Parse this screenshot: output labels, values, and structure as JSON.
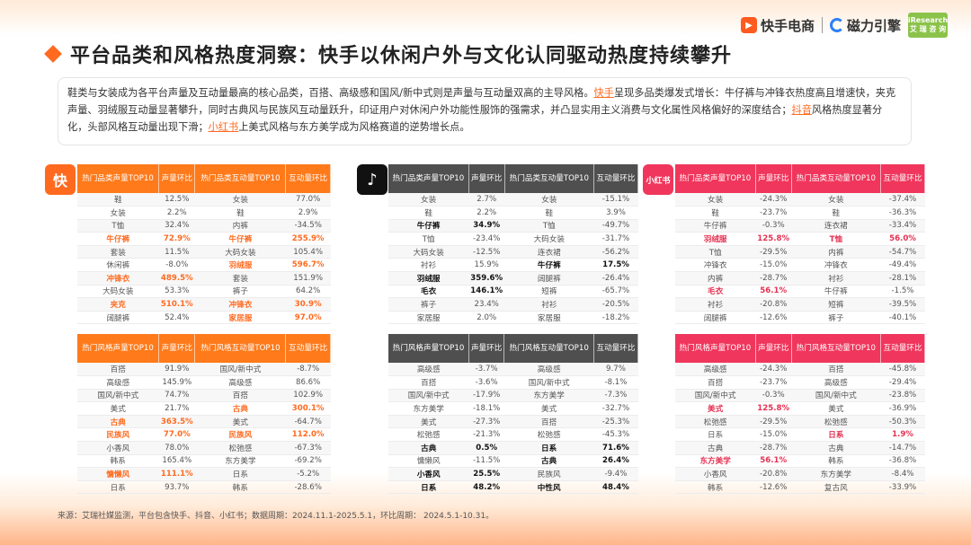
{
  "title": "平台品类和风格热度洞察：快手以休闲户外与文化认同驱动热度持续攀升",
  "logos": {
    "ks": "快手电商",
    "cl": "磁力引擎",
    "ir_top": "iResearch",
    "ir_bottom": "艾 瑞 咨 询"
  },
  "summary": {
    "p1": "鞋类与女装成为各平台声量及互动量最高的核心品类，百搭、高级感和国风/新中式则是声量与互动量双高的主导风格。",
    "ks": "快手",
    "p2": "呈现多品类爆发式增长：牛仔裤与冲锋衣热度高且增速快，夹克声量、羽绒服互动量显著攀升，同时古典风与民族风互动量跃升，印证用户对休闲户外功能性服饰的强需求，并凸显实用主义消费与文化属性风格偏好的深度结合；",
    "dy": "抖音",
    "p3": "风格热度显著分化，头部风格互动量出现下滑；",
    "xhs": "小红书",
    "p4": "上美式风格与东方美学成为风格赛道的逆势增长点。"
  },
  "icons": {
    "ks": "快",
    "dy": "♪",
    "xhs": "小红书"
  },
  "headers": {
    "cat_voice": "热门品类声量TOP10",
    "cat_inter": "热门品类互动量TOP10",
    "style_voice": "热门风格声量TOP10",
    "style_inter": "热门风格互动量TOP10",
    "voice_change": "声量环比",
    "inter_change": "互动量环比"
  },
  "ks_cat": [
    [
      "鞋",
      "12.5%",
      "女装",
      "77.0%",
      "",
      ""
    ],
    [
      "女装",
      "2.2%",
      "鞋",
      "2.9%",
      "",
      ""
    ],
    [
      "T恤",
      "32.4%",
      "内裤",
      "-34.5%",
      "",
      ""
    ],
    [
      "牛仔裤",
      "72.9%",
      "牛仔裤",
      "255.9%",
      "h",
      "h"
    ],
    [
      "套装",
      "11.5%",
      "大码女装",
      "105.4%",
      "",
      ""
    ],
    [
      "休闲裤",
      "-8.0%",
      "羽绒服",
      "596.7%",
      "",
      "h"
    ],
    [
      "冲锋衣",
      "489.5%",
      "套装",
      "151.9%",
      "h",
      ""
    ],
    [
      "大码女装",
      "53.3%",
      "裤子",
      "64.2%",
      "",
      ""
    ],
    [
      "夹克",
      "510.1%",
      "冲锋衣",
      "30.9%",
      "h",
      "h"
    ],
    [
      "阔腿裤",
      "52.4%",
      "家居服",
      "97.0%",
      "",
      "h"
    ]
  ],
  "ks_style": [
    [
      "百搭",
      "91.9%",
      "国风/新中式",
      "-8.7%",
      "",
      ""
    ],
    [
      "高级感",
      "145.9%",
      "高级感",
      "86.6%",
      "",
      ""
    ],
    [
      "国风/新中式",
      "74.7%",
      "百搭",
      "102.9%",
      "",
      ""
    ],
    [
      "美式",
      "21.7%",
      "古典",
      "300.1%",
      "",
      "h"
    ],
    [
      "古典",
      "363.5%",
      "美式",
      "-64.7%",
      "h",
      ""
    ],
    [
      "民族风",
      "77.0%",
      "民族风",
      "112.0%",
      "h",
      "h"
    ],
    [
      "小香风",
      "78.0%",
      "松弛感",
      "-67.3%",
      "",
      ""
    ],
    [
      "韩系",
      "165.4%",
      "东方美学",
      "-69.2%",
      "",
      ""
    ],
    [
      "慵懒风",
      "111.1%",
      "日系",
      "-5.2%",
      "h",
      ""
    ],
    [
      "日系",
      "93.7%",
      "韩系",
      "-28.6%",
      "",
      ""
    ]
  ],
  "dy_cat": [
    [
      "女装",
      "2.7%",
      "女装",
      "-15.1%",
      "",
      ""
    ],
    [
      "鞋",
      "2.2%",
      "鞋",
      "3.9%",
      "",
      ""
    ],
    [
      "牛仔裤",
      "34.9%",
      "T恤",
      "-49.7%",
      "b",
      ""
    ],
    [
      "T恤",
      "-23.4%",
      "大码女装",
      "-31.7%",
      "",
      ""
    ],
    [
      "大码女装",
      "-12.5%",
      "连衣裙",
      "-56.2%",
      "",
      ""
    ],
    [
      "衬衫",
      "15.9%",
      "牛仔裤",
      "17.5%",
      "",
      "b"
    ],
    [
      "羽绒服",
      "359.6%",
      "阔腿裤",
      "-26.4%",
      "b",
      ""
    ],
    [
      "毛衣",
      "146.1%",
      "短裤",
      "-65.7%",
      "b",
      ""
    ],
    [
      "裤子",
      "23.4%",
      "衬衫",
      "-20.5%",
      "",
      ""
    ],
    [
      "家居服",
      "2.0%",
      "家居服",
      "-18.2%",
      "",
      ""
    ]
  ],
  "dy_style": [
    [
      "高级感",
      "-3.7%",
      "高级感",
      "9.7%",
      "",
      ""
    ],
    [
      "百搭",
      "-3.6%",
      "国风/新中式",
      "-8.1%",
      "",
      ""
    ],
    [
      "国风/新中式",
      "-17.9%",
      "东方美学",
      "-7.3%",
      "",
      ""
    ],
    [
      "东方美学",
      "-18.1%",
      "美式",
      "-32.7%",
      "",
      ""
    ],
    [
      "美式",
      "-27.3%",
      "百搭",
      "-25.3%",
      "",
      ""
    ],
    [
      "松弛感",
      "-21.3%",
      "松弛感",
      "-45.3%",
      "",
      ""
    ],
    [
      "古典",
      "0.5%",
      "日系",
      "71.6%",
      "b",
      "b"
    ],
    [
      "慵懒风",
      "-11.5%",
      "古典",
      "26.4%",
      "",
      "b"
    ],
    [
      "小香风",
      "25.5%",
      "民族风",
      "-9.4%",
      "b",
      ""
    ],
    [
      "日系",
      "48.2%",
      "中性风",
      "48.4%",
      "b",
      "b"
    ]
  ],
  "xhs_cat": [
    [
      "女装",
      "-24.3%",
      "女装",
      "-37.4%",
      "",
      ""
    ],
    [
      "鞋",
      "-23.7%",
      "鞋",
      "-36.3%",
      "",
      ""
    ],
    [
      "牛仔裤",
      "-0.3%",
      "连衣裙",
      "-33.4%",
      "",
      ""
    ],
    [
      "羽绒服",
      "125.8%",
      "T恤",
      "56.0%",
      "r",
      "r"
    ],
    [
      "T恤",
      "-29.5%",
      "内裤",
      "-54.7%",
      "",
      ""
    ],
    [
      "冲锋衣",
      "-15.0%",
      "冲锋衣",
      "-49.4%",
      "",
      ""
    ],
    [
      "内裤",
      "-28.7%",
      "衬衫",
      "-28.1%",
      "",
      ""
    ],
    [
      "毛衣",
      "56.1%",
      "牛仔裤",
      "-1.5%",
      "r",
      ""
    ],
    [
      "衬衫",
      "-20.8%",
      "短裤",
      "-39.5%",
      "",
      ""
    ],
    [
      "阔腿裤",
      "-12.6%",
      "裤子",
      "-40.1%",
      "",
      ""
    ]
  ],
  "xhs_style": [
    [
      "高级感",
      "-24.3%",
      "百搭",
      "-45.8%",
      "",
      ""
    ],
    [
      "百搭",
      "-23.7%",
      "高级感",
      "-29.4%",
      "",
      ""
    ],
    [
      "国风/新中式",
      "-0.3%",
      "国风/新中式",
      "-23.8%",
      "",
      ""
    ],
    [
      "美式",
      "125.8%",
      "美式",
      "-36.9%",
      "r",
      ""
    ],
    [
      "松弛感",
      "-29.5%",
      "松弛感",
      "-50.3%",
      "",
      ""
    ],
    [
      "日系",
      "-15.0%",
      "日系",
      "1.9%",
      "",
      "r"
    ],
    [
      "古典",
      "-28.7%",
      "古典",
      "-14.7%",
      "",
      ""
    ],
    [
      "东方美学",
      "56.1%",
      "韩系",
      "-36.8%",
      "r",
      ""
    ],
    [
      "小香风",
      "-20.8%",
      "东方美学",
      "-8.4%",
      "",
      ""
    ],
    [
      "韩系",
      "-12.6%",
      "复古风",
      "-33.9%",
      "",
      ""
    ]
  ],
  "source": "来源：艾瑞社媒监测，平台包含快手、抖音、小红书；数据周期：2024.11.1-2025.5.1，环比周期： 2024.5.1-10.31。"
}
